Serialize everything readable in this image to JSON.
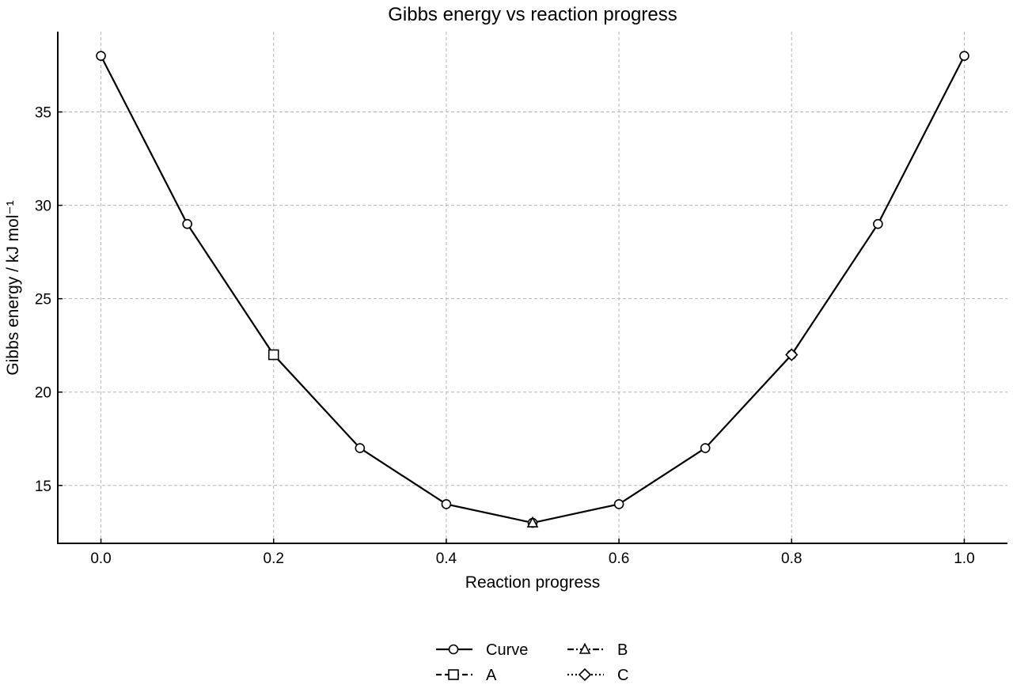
{
  "chart_data": {
    "type": "line",
    "title": "Gibbs energy vs reaction progress",
    "xlabel": "Reaction progress",
    "ylabel": "Gibbs energy / kJ mol⁻¹",
    "xlim": [
      -0.05,
      1.05
    ],
    "ylim": [
      11.9,
      39.3
    ],
    "x_ticks": [
      0.0,
      0.2,
      0.4,
      0.6,
      0.8,
      1.0
    ],
    "x_tick_labels": [
      "0.0",
      "0.2",
      "0.4",
      "0.6",
      "0.8",
      "1.0"
    ],
    "y_ticks": [
      15,
      20,
      25,
      30,
      35
    ],
    "y_tick_labels": [
      "15",
      "20",
      "25",
      "30",
      "35"
    ],
    "grid": true,
    "legend_position": "bottom-center",
    "series": [
      {
        "name": "Curve",
        "marker": "circle",
        "line_style": "solid",
        "x": [
          0.0,
          0.1,
          0.2,
          0.3,
          0.4,
          0.5,
          0.6,
          0.7,
          0.8,
          0.9,
          1.0
        ],
        "y": [
          38,
          29,
          22,
          17,
          14,
          13,
          14,
          17,
          22,
          29,
          38
        ]
      },
      {
        "name": "A",
        "marker": "square",
        "line_style": "dashed",
        "x": [
          0.2
        ],
        "y": [
          22
        ]
      },
      {
        "name": "B",
        "marker": "triangle",
        "line_style": "dashdot",
        "x": [
          0.5
        ],
        "y": [
          13
        ]
      },
      {
        "name": "C",
        "marker": "diamond",
        "line_style": "dotted",
        "x": [
          0.8
        ],
        "y": [
          22
        ]
      }
    ],
    "colors": {
      "line": "#000000",
      "marker_fill": "#ffffff",
      "grid": "#b5b5b5"
    }
  }
}
